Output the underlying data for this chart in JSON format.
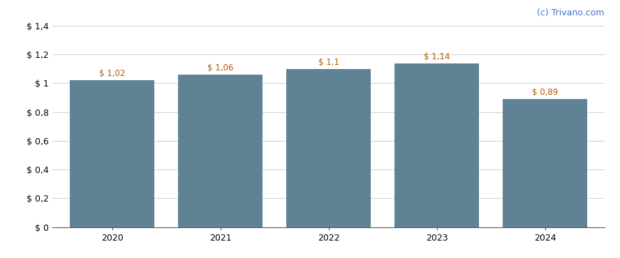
{
  "categories": [
    "2020",
    "2021",
    "2022",
    "2023",
    "2024"
  ],
  "values": [
    1.02,
    1.06,
    1.1,
    1.14,
    0.89
  ],
  "labels": [
    "$ 1,02",
    "$ 1,06",
    "$ 1,1",
    "$ 1,14",
    "$ 0,89"
  ],
  "bar_color": "#5f8294",
  "background_color": "#ffffff",
  "grid_color": "#d0d0d0",
  "ylim": [
    0,
    1.4
  ],
  "yticks": [
    0,
    0.2,
    0.4,
    0.6,
    0.8,
    1.0,
    1.2,
    1.4
  ],
  "ytick_labels": [
    "$ 0",
    "$ 0,2",
    "$ 0,4",
    "$ 0,6",
    "$ 0,8",
    "$ 1",
    "$ 1,2",
    "$ 1,4"
  ],
  "label_color": "#b35a00",
  "watermark": "(c) Trivano.com",
  "watermark_color": "#4472c4",
  "bar_width": 0.78,
  "label_fontsize": 8.5,
  "tick_fontsize": 9,
  "watermark_fontsize": 9
}
